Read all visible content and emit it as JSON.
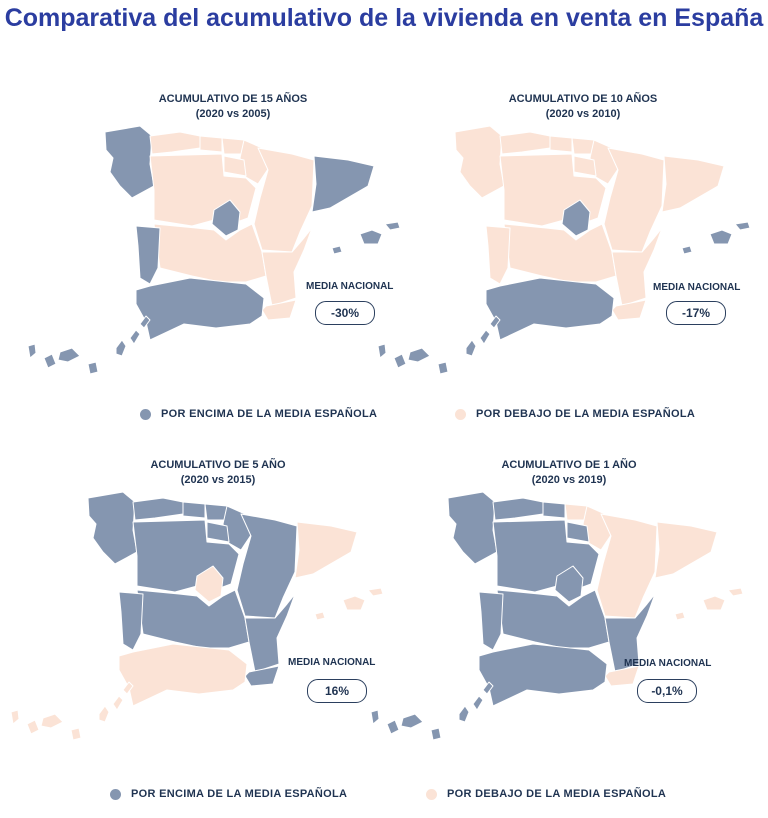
{
  "title": "Comparativa del acumulativo de la vivienda en venta en España",
  "colors": {
    "above": "#8596b0",
    "below": "#fbe3d6",
    "title": "#2b3da0",
    "text": "#1f3351"
  },
  "legend": {
    "above": "POR ENCIMA DE LA MEDIA ESPAÑOLA",
    "below": "POR DEBAJO DE LA MEDIA ESPAÑOLA"
  },
  "panels": [
    {
      "title": "ACUMULATIVO DE 15 AÑOS",
      "subtitle": "(2020 vs 2005)",
      "media_label": "MEDIA NACIONAL",
      "media_value": "-30%",
      "regions": {
        "galicia": "above",
        "asturias": "below",
        "cantabria": "below",
        "paisvasco": "below",
        "navarra": "below",
        "larioja": "below",
        "aragon": "below",
        "cataluna": "above",
        "castillaleon": "below",
        "madrid": "above",
        "castillalamancha": "below",
        "extremadura": "above",
        "valencia": "below",
        "murcia": "below",
        "andalucia": "above",
        "baleares": "above",
        "canarias": "above"
      }
    },
    {
      "title": "ACUMULATIVO DE 10 AÑOS",
      "subtitle": "(2020 vs 2010)",
      "media_label": "MEDIA NACIONAL",
      "media_value": "-17%",
      "regions": {
        "galicia": "below",
        "asturias": "below",
        "cantabria": "below",
        "paisvasco": "below",
        "navarra": "below",
        "larioja": "below",
        "aragon": "below",
        "cataluna": "below",
        "castillaleon": "below",
        "madrid": "above",
        "castillalamancha": "below",
        "extremadura": "below",
        "valencia": "below",
        "murcia": "below",
        "andalucia": "above",
        "baleares": "above",
        "canarias": "above"
      }
    },
    {
      "title": "ACUMULATIVO DE 5 AÑO",
      "subtitle": "(2020 vs 2015)",
      "media_label": "MEDIA NACIONAL",
      "media_value": "16%",
      "regions": {
        "galicia": "above",
        "asturias": "above",
        "cantabria": "above",
        "paisvasco": "above",
        "navarra": "above",
        "larioja": "above",
        "aragon": "above",
        "cataluna": "below",
        "castillaleon": "above",
        "madrid": "below",
        "castillalamancha": "above",
        "extremadura": "above",
        "valencia": "above",
        "murcia": "above",
        "andalucia": "below",
        "baleares": "below",
        "canarias": "below"
      }
    },
    {
      "title": "ACUMULATIVO DE 1 AÑO",
      "subtitle": "(2020 vs 2019)",
      "media_label": "MEDIA NACIONAL",
      "media_value": "-0,1%",
      "regions": {
        "galicia": "above",
        "asturias": "above",
        "cantabria": "above",
        "paisvasco": "below",
        "navarra": "below",
        "larioja": "above",
        "aragon": "below",
        "cataluna": "below",
        "castillaleon": "above",
        "madrid": "above",
        "castillalamancha": "above",
        "extremadura": "above",
        "valencia": "above",
        "murcia": "below",
        "andalucia": "above",
        "baleares": "below",
        "canarias": "above"
      }
    }
  ]
}
